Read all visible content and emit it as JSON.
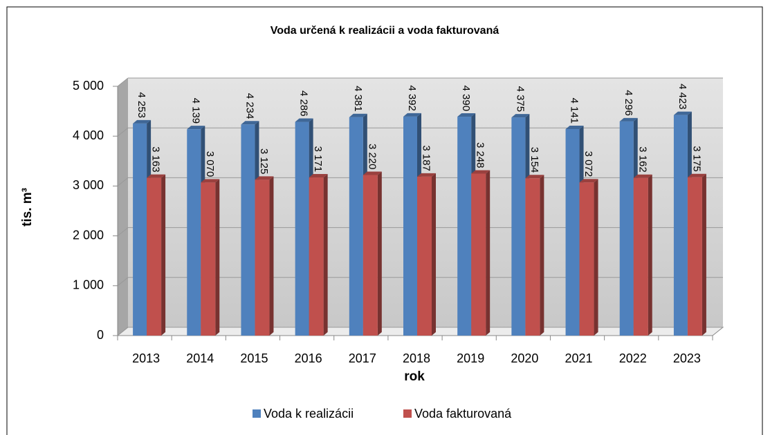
{
  "chart_data": {
    "type": "bar3d",
    "title": "Voda určená k realizácii a voda fakturovaná",
    "y_label": "tis. m³",
    "x_label": "rok",
    "categories": [
      "2013",
      "2014",
      "2015",
      "2016",
      "2017",
      "2018",
      "2019",
      "2020",
      "2021",
      "2022",
      "2023"
    ],
    "series": [
      {
        "name": "Voda k realizácii",
        "color": "#4f81bd",
        "values": [
          4253,
          4139,
          4234,
          4286,
          4381,
          4392,
          4390,
          4375,
          4141,
          4296,
          4423
        ],
        "value_labels": [
          "4 253",
          "4 139",
          "4 234",
          "4 286",
          "4 381",
          "4 392",
          "4 390",
          "4 375",
          "4 141",
          "4 296",
          "4 423"
        ]
      },
      {
        "name": "Voda fakturovaná",
        "color": "#c0504d",
        "values": [
          3163,
          3070,
          3125,
          3171,
          3220,
          3187,
          3248,
          3154,
          3072,
          3162,
          3175
        ],
        "value_labels": [
          "3 163",
          "3 070",
          "3 125",
          "3 171",
          "3 220",
          "3 187",
          "3 248",
          "3 154",
          "3 072",
          "3 162",
          "3 175"
        ]
      }
    ],
    "ylim": [
      0,
      5000
    ],
    "yticks": [
      0,
      {
        "value": 1000,
        "label": "1 000"
      },
      {
        "value": 2000,
        "label": "2 000"
      },
      {
        "value": 3000,
        "label": "3 000"
      },
      {
        "value": 4000,
        "label": "4 000"
      },
      {
        "value": 5000,
        "label": "5 000"
      }
    ],
    "grid": true,
    "legend": "bottom"
  }
}
